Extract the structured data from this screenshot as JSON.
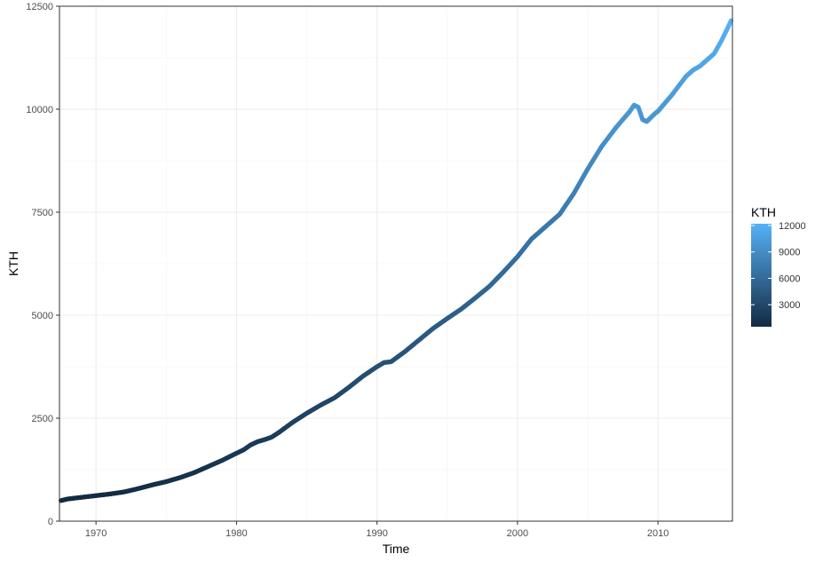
{
  "chart_data": {
    "type": "scatter",
    "title": "",
    "xlabel": "Time",
    "ylabel": "KTH",
    "xlim": [
      1967.4,
      2015.3
    ],
    "ylim": [
      0,
      12500
    ],
    "x_ticks": [
      1970,
      1980,
      1990,
      2000,
      2010
    ],
    "y_ticks": [
      0,
      2500,
      5000,
      7500,
      10000,
      12500
    ],
    "grid": true,
    "legend": {
      "title": "KTH",
      "placement": "right",
      "type": "colorbar",
      "ticks": [
        3000,
        6000,
        9000,
        12000
      ],
      "range": [
        500,
        12200
      ],
      "low_color": "#132B43",
      "high_color": "#56B1F7"
    },
    "series": [
      {
        "x": [
          1967.5,
          1968,
          1969,
          1970,
          1971,
          1972,
          1973,
          1974,
          1975,
          1976,
          1977,
          1978,
          1979,
          1980,
          1980.5,
          1981,
          1981.5,
          1982,
          1982.5,
          1983,
          1984,
          1985,
          1986,
          1987,
          1988,
          1989,
          1990,
          1990.5,
          1991,
          1992,
          1993,
          1994,
          1995,
          1996,
          1997,
          1998,
          1999,
          2000,
          2001,
          2002,
          2003,
          2004,
          2005,
          2006,
          2007,
          2007.5,
          2008,
          2008.3,
          2008.6,
          2008.9,
          2009.2,
          2009.5,
          2009.8,
          2010,
          2011,
          2012,
          2012.5,
          2013,
          2014,
          2014.5,
          2015,
          2015.2
        ],
        "values": [
          500,
          540,
          580,
          620,
          660,
          710,
          790,
          880,
          960,
          1060,
          1180,
          1330,
          1480,
          1650,
          1730,
          1850,
          1930,
          1980,
          2040,
          2150,
          2400,
          2620,
          2820,
          3000,
          3250,
          3520,
          3750,
          3850,
          3870,
          4120,
          4400,
          4680,
          4920,
          5150,
          5420,
          5700,
          6050,
          6420,
          6850,
          7150,
          7450,
          7950,
          8550,
          9100,
          9550,
          9750,
          9950,
          10100,
          10050,
          9750,
          9700,
          9800,
          9900,
          9950,
          10350,
          10800,
          10950,
          11050,
          11350,
          11650,
          12000,
          12150
        ]
      }
    ]
  }
}
